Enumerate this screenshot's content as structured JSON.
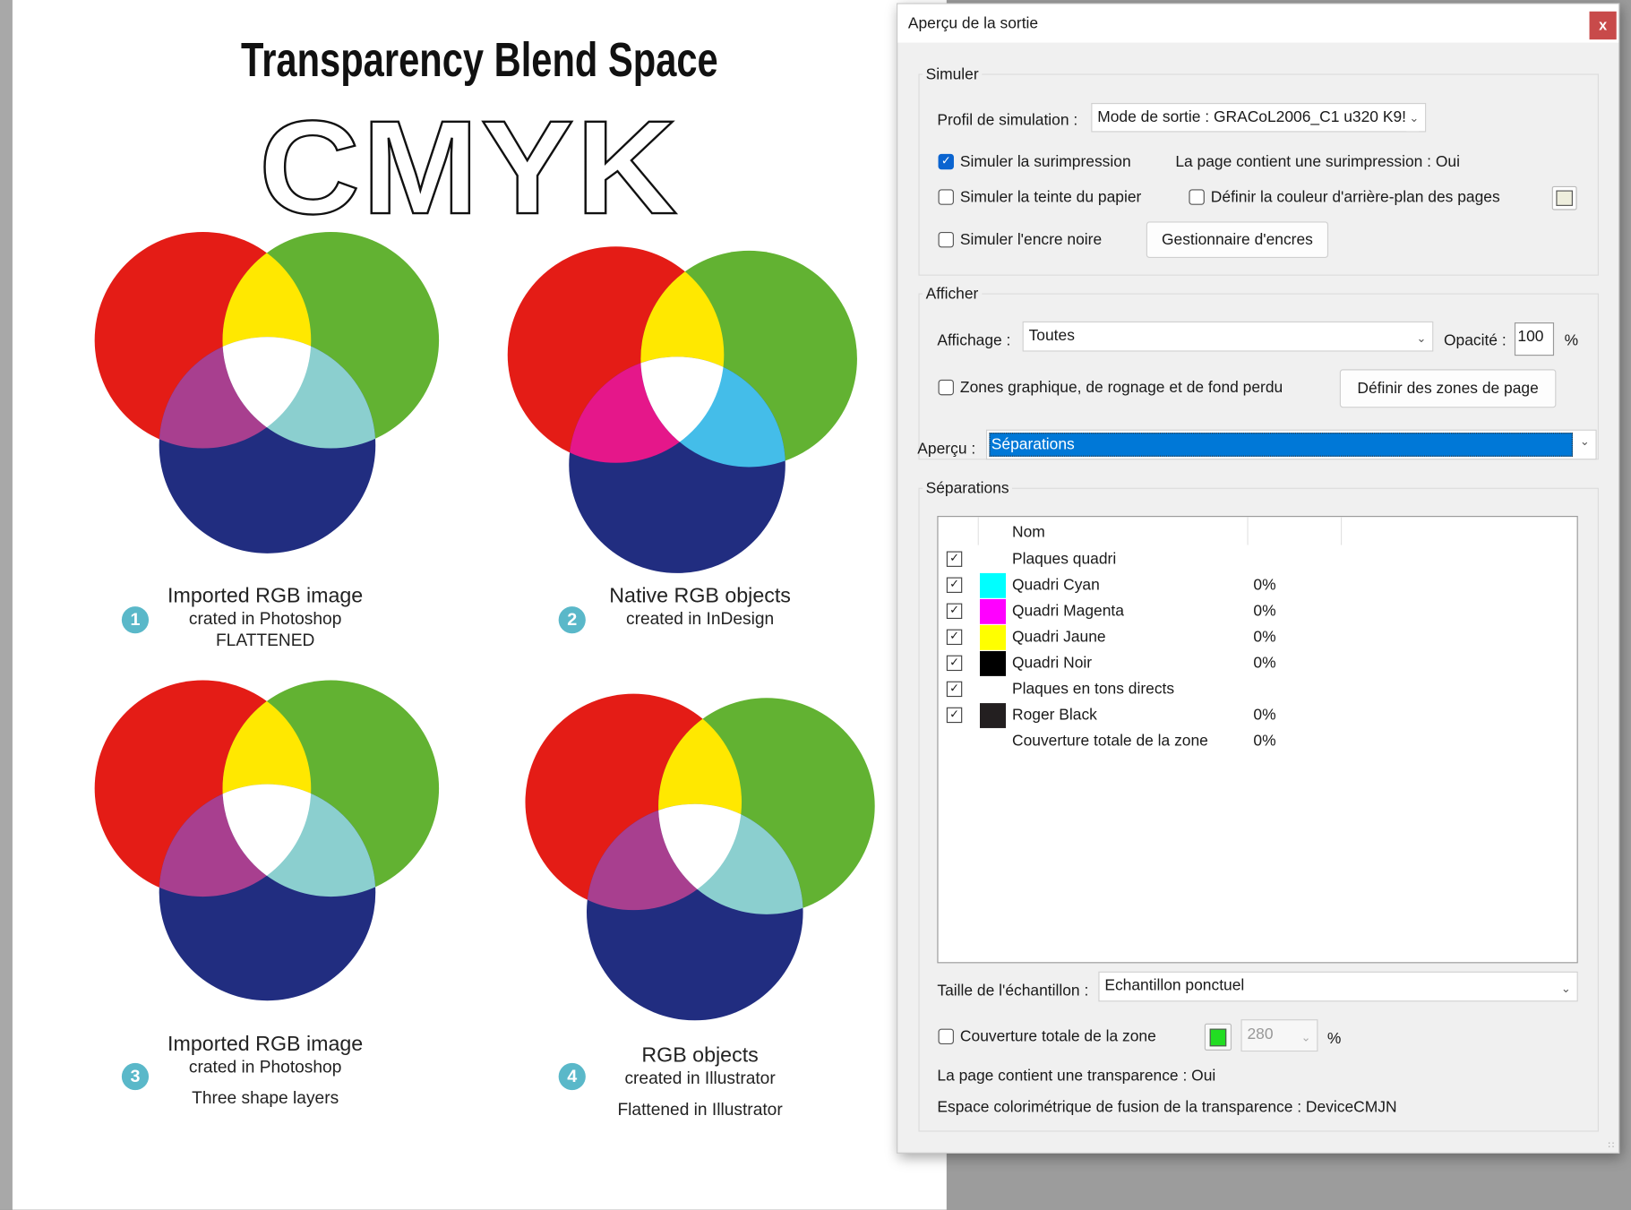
{
  "page": {
    "title": "Transparency Blend Space",
    "subtitle": "CMYK",
    "figures": [
      {
        "number": "1",
        "lines": [
          "Imported RGB image",
          "crated in Photoshop",
          "FLATTENED"
        ]
      },
      {
        "number": "2",
        "lines": [
          "Native RGB objects",
          "created in InDesign"
        ]
      },
      {
        "number": "3",
        "lines": [
          "Imported RGB image",
          "crated in Photoshop",
          "Three shape layers"
        ]
      },
      {
        "number": "4",
        "lines": [
          "RGB objects",
          "created in Illustrator",
          "Flattened in Illustrator"
        ]
      }
    ],
    "colors": {
      "red": "#e41c16",
      "green": "#62b232",
      "blue": "#212d80",
      "yellow": "#ffe800",
      "white": "#ffffff",
      "rgb_red_blue": "#a83f8f",
      "rgb_green_blue": "#8bcfcf",
      "native_red_blue": "#e5178a",
      "native_green_blue": "#44bde9",
      "badge": "#5ab8c9"
    }
  },
  "dialog": {
    "title": "Aperçu de la sortie",
    "close_label": "x",
    "simuler": {
      "legend": "Simuler",
      "profile_label": "Profil de simulation :",
      "profile_value": "Mode de sortie : GRACoL2006_C1 u320 K9!",
      "simulate_overprint": {
        "label": "Simuler la surimpression",
        "checked": true
      },
      "overprint_info": "La page contient une surimpression :  Oui",
      "paper_tint": {
        "label": "Simuler la teinte du papier",
        "checked": false
      },
      "bg_color": {
        "label": "Définir la couleur d'arrière-plan des pages",
        "checked": false
      },
      "bg_swatch_color": "#eeeedd",
      "black_ink": {
        "label": "Simuler l'encre noire",
        "checked": false
      },
      "ink_manager_button": "Gestionnaire d'encres"
    },
    "afficher": {
      "legend": "Afficher",
      "display_label": "Affichage :",
      "display_value": "Toutes",
      "opacity_label": "Opacité :",
      "opacity_value": "100",
      "percent": "%",
      "zones": {
        "label": "Zones graphique, de rognage et de fond perdu",
        "checked": false
      },
      "define_zones_button": "Définir des zones de page"
    },
    "apercu": {
      "label": "Aperçu :",
      "value": "Séparations"
    },
    "separations": {
      "legend": "Séparations",
      "column_name": "Nom",
      "rows": [
        {
          "checked": true,
          "swatch": "",
          "name": "Plaques quadri",
          "value": ""
        },
        {
          "checked": true,
          "swatch": "#00ffff",
          "name": "Quadri Cyan",
          "value": "0%"
        },
        {
          "checked": true,
          "swatch": "#ff00ff",
          "name": "Quadri Magenta",
          "value": "0%"
        },
        {
          "checked": true,
          "swatch": "#ffff00",
          "name": "Quadri Jaune",
          "value": "0%"
        },
        {
          "checked": true,
          "swatch": "#000000",
          "name": "Quadri Noir",
          "value": "0%"
        },
        {
          "checked": true,
          "swatch": "",
          "name": "Plaques en tons directs",
          "value": ""
        },
        {
          "checked": true,
          "swatch": "#231f20",
          "name": "Roger Black",
          "value": "0%"
        },
        {
          "checked": null,
          "swatch": "",
          "name": "Couverture totale de la zone",
          "value": "0%"
        }
      ],
      "sample_label": "Taille de l'échantillon :",
      "sample_value": "Echantillon ponctuel",
      "coverage": {
        "label": "Couverture totale de la zone",
        "checked": false
      },
      "coverage_color": "#22dd22",
      "coverage_value": "280",
      "coverage_percent": "%",
      "transparency_info": "La page contient une transparence :  Oui",
      "blend_space_info": "Espace colorimétrique de fusion de la transparence :  DeviceCMJN"
    }
  }
}
